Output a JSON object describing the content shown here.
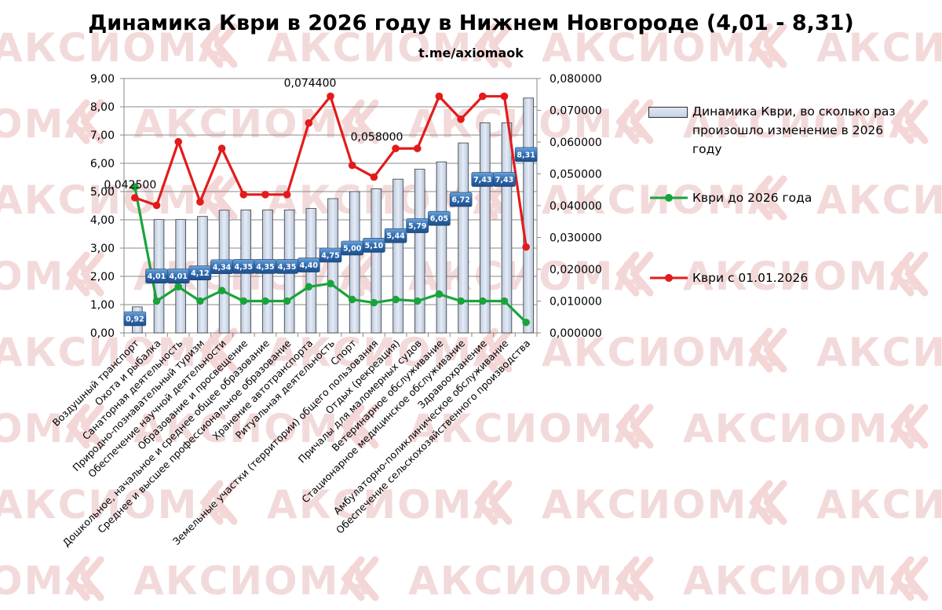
{
  "chart_data": {
    "type": "bar",
    "title": "Динамика Кври в 2026 году в Нижнем Новгороде (4,01 - 8,31)",
    "subtitle": "t.me/axiomaok",
    "categories": [
      "Воздушный транспорт",
      "Охота и рыбалка",
      "Санаторная деятельность",
      "Природно-познавательный туризм",
      "Обеспечение научной деятельности",
      "Образование и просвещение",
      "Дошкольное, начальное и среднее общее образование",
      "Среднее и высшее профессиональное образование",
      "Хранение автотранспорта",
      "Ритуальная деятельность",
      "Спорт",
      "Земельные участки (территории) общего пользования",
      "Отдых (рекреация)",
      "Причалы для маломерных судов",
      "Ветеринарное обслуживание",
      "Стационарное медицинское обслуживание",
      "Здравоохранение",
      "Амбулаторно-поликлиническое обслуживание",
      "Обеспечение сельскохозяйственного производства"
    ],
    "series": [
      {
        "name": "Динамика Кври, во сколько раз произошло изменение  в 2026 году",
        "type": "bar",
        "axis": "left",
        "color": "#cfd9ea",
        "values": [
          0.92,
          4.01,
          4.01,
          4.12,
          4.34,
          4.35,
          4.35,
          4.35,
          4.4,
          4.75,
          5.0,
          5.1,
          5.44,
          5.79,
          6.05,
          6.72,
          7.43,
          7.43,
          8.31
        ],
        "labels": [
          "0,92",
          "4,01",
          "4,01",
          "4,12",
          "4,34",
          "4,35",
          "4,35",
          "4,35",
          "4,40",
          "4,75",
          "5,00",
          "5,10",
          "5,44",
          "5,79",
          "6,05",
          "6,72",
          "7,43",
          "7,43",
          "8,31"
        ]
      },
      {
        "name": "Кври до 2026 года",
        "type": "line",
        "axis": "right",
        "color": "#1aa33a",
        "values": [
          0.0459,
          0.01,
          0.0145,
          0.01,
          0.0133,
          0.01,
          0.01,
          0.01,
          0.0145,
          0.0155,
          0.0105,
          0.0095,
          0.0105,
          0.01,
          0.0122,
          0.01,
          0.01,
          0.01,
          0.0033
        ]
      },
      {
        "name": "Кври с 01.01.2026",
        "type": "line",
        "axis": "right",
        "color": "#e31b1b",
        "values": [
          0.0425,
          0.0401,
          0.0601,
          0.0412,
          0.058,
          0.0435,
          0.0435,
          0.0435,
          0.066,
          0.0744,
          0.0527,
          0.049,
          0.058,
          0.058,
          0.0744,
          0.0672,
          0.0744,
          0.0744,
          0.027
        ]
      }
    ],
    "annotations": [
      {
        "series": 2,
        "index": 0,
        "text": "0,042500"
      },
      {
        "series": 2,
        "index": 9,
        "text": "0,074400"
      },
      {
        "series": 2,
        "index": 12,
        "text": "0,058000"
      }
    ],
    "ylim": [
      0,
      9
    ],
    "yticks": [
      "0,00",
      "1,00",
      "2,00",
      "3,00",
      "4,00",
      "5,00",
      "6,00",
      "7,00",
      "8,00",
      "9,00"
    ],
    "y2lim": [
      0,
      0.08
    ],
    "y2ticks": [
      "0,000000",
      "0,010000",
      "0,020000",
      "0,030000",
      "0,040000",
      "0,050000",
      "0,060000",
      "0,070000",
      "0,080000"
    ],
    "grid": true,
    "legend_position": "right"
  },
  "watermark": {
    "text": "АКСИОМА"
  }
}
